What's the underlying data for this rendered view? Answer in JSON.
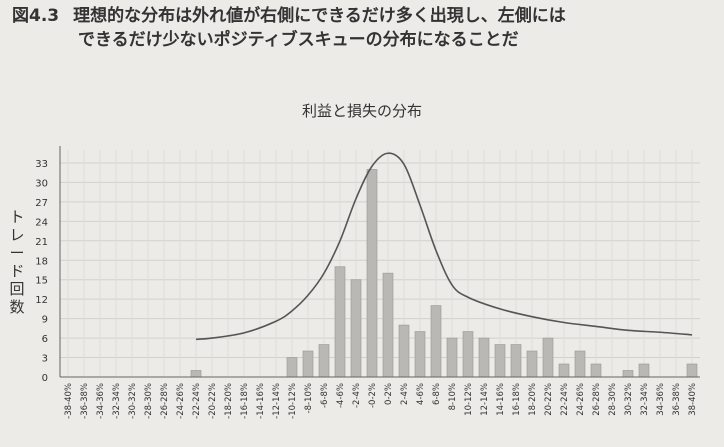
{
  "figure": {
    "number": "図4.3",
    "caption_line1": "理想的な分布は外れ値が右側にできるだけ多く出現し、左側には",
    "caption_line2": "できるだけ少ないポジティブスキューの分布になることだ"
  },
  "chart_data": {
    "type": "bar",
    "title": "利益と損失の分布",
    "ylabel": "トレード回数",
    "xlabel": "",
    "ylim": [
      0,
      35
    ],
    "yticks": [
      0,
      3,
      6,
      9,
      12,
      15,
      18,
      21,
      24,
      27,
      30,
      33
    ],
    "grid": true,
    "categories": [
      "-38-40%",
      "-36-38%",
      "-34-36%",
      "-32-34%",
      "-30-32%",
      "-28-30%",
      "-26-28%",
      "-24-26%",
      "-22-24%",
      "-20-22%",
      "-18-20%",
      "-16-18%",
      "-14-16%",
      "-12-14%",
      "-10-12%",
      "-8-10%",
      "-6-8%",
      "-4-6%",
      "-2-4%",
      "-0-2%",
      "0-2%",
      "2-4%",
      "4-6%",
      "6-8%",
      "8-10%",
      "10-12%",
      "12-14%",
      "14-16%",
      "16-18%",
      "18-20%",
      "20-22%",
      "22-24%",
      "24-26%",
      "26-28%",
      "28-30%",
      "30-32%",
      "32-34%",
      "34-36%",
      "36-38%",
      "38-40%"
    ],
    "values": [
      0,
      0,
      0,
      0,
      0,
      0,
      0,
      0,
      1,
      0,
      0,
      0,
      0,
      0,
      3,
      4,
      5,
      17,
      15,
      32,
      16,
      8,
      7,
      11,
      6,
      7,
      6,
      5,
      5,
      4,
      6,
      2,
      4,
      2,
      0,
      1,
      2,
      0,
      0,
      2
    ],
    "curve": {
      "type": "line",
      "x": [
        "-22-24%",
        "-20-22%",
        "-16-18%",
        "-12-14%",
        "-10-12%",
        "-8-10%",
        "-6-8%",
        "-4-6%",
        "-2-4%",
        "-0-2%",
        "0-2%",
        "2-4%",
        "4-6%",
        "6-8%",
        "8-10%",
        "10-12%",
        "14-16%",
        "18-20%",
        "22-24%",
        "26-28%",
        "30-32%",
        "34-36%",
        "38-40%"
      ],
      "y": [
        5.8,
        6.0,
        6.8,
        8.6,
        10.2,
        12.6,
        16.0,
        21.0,
        27.5,
        32.5,
        34.5,
        32.8,
        26.5,
        19.5,
        14.2,
        12.3,
        10.5,
        9.3,
        8.4,
        7.8,
        7.2,
        6.9,
        6.5
      ]
    }
  }
}
